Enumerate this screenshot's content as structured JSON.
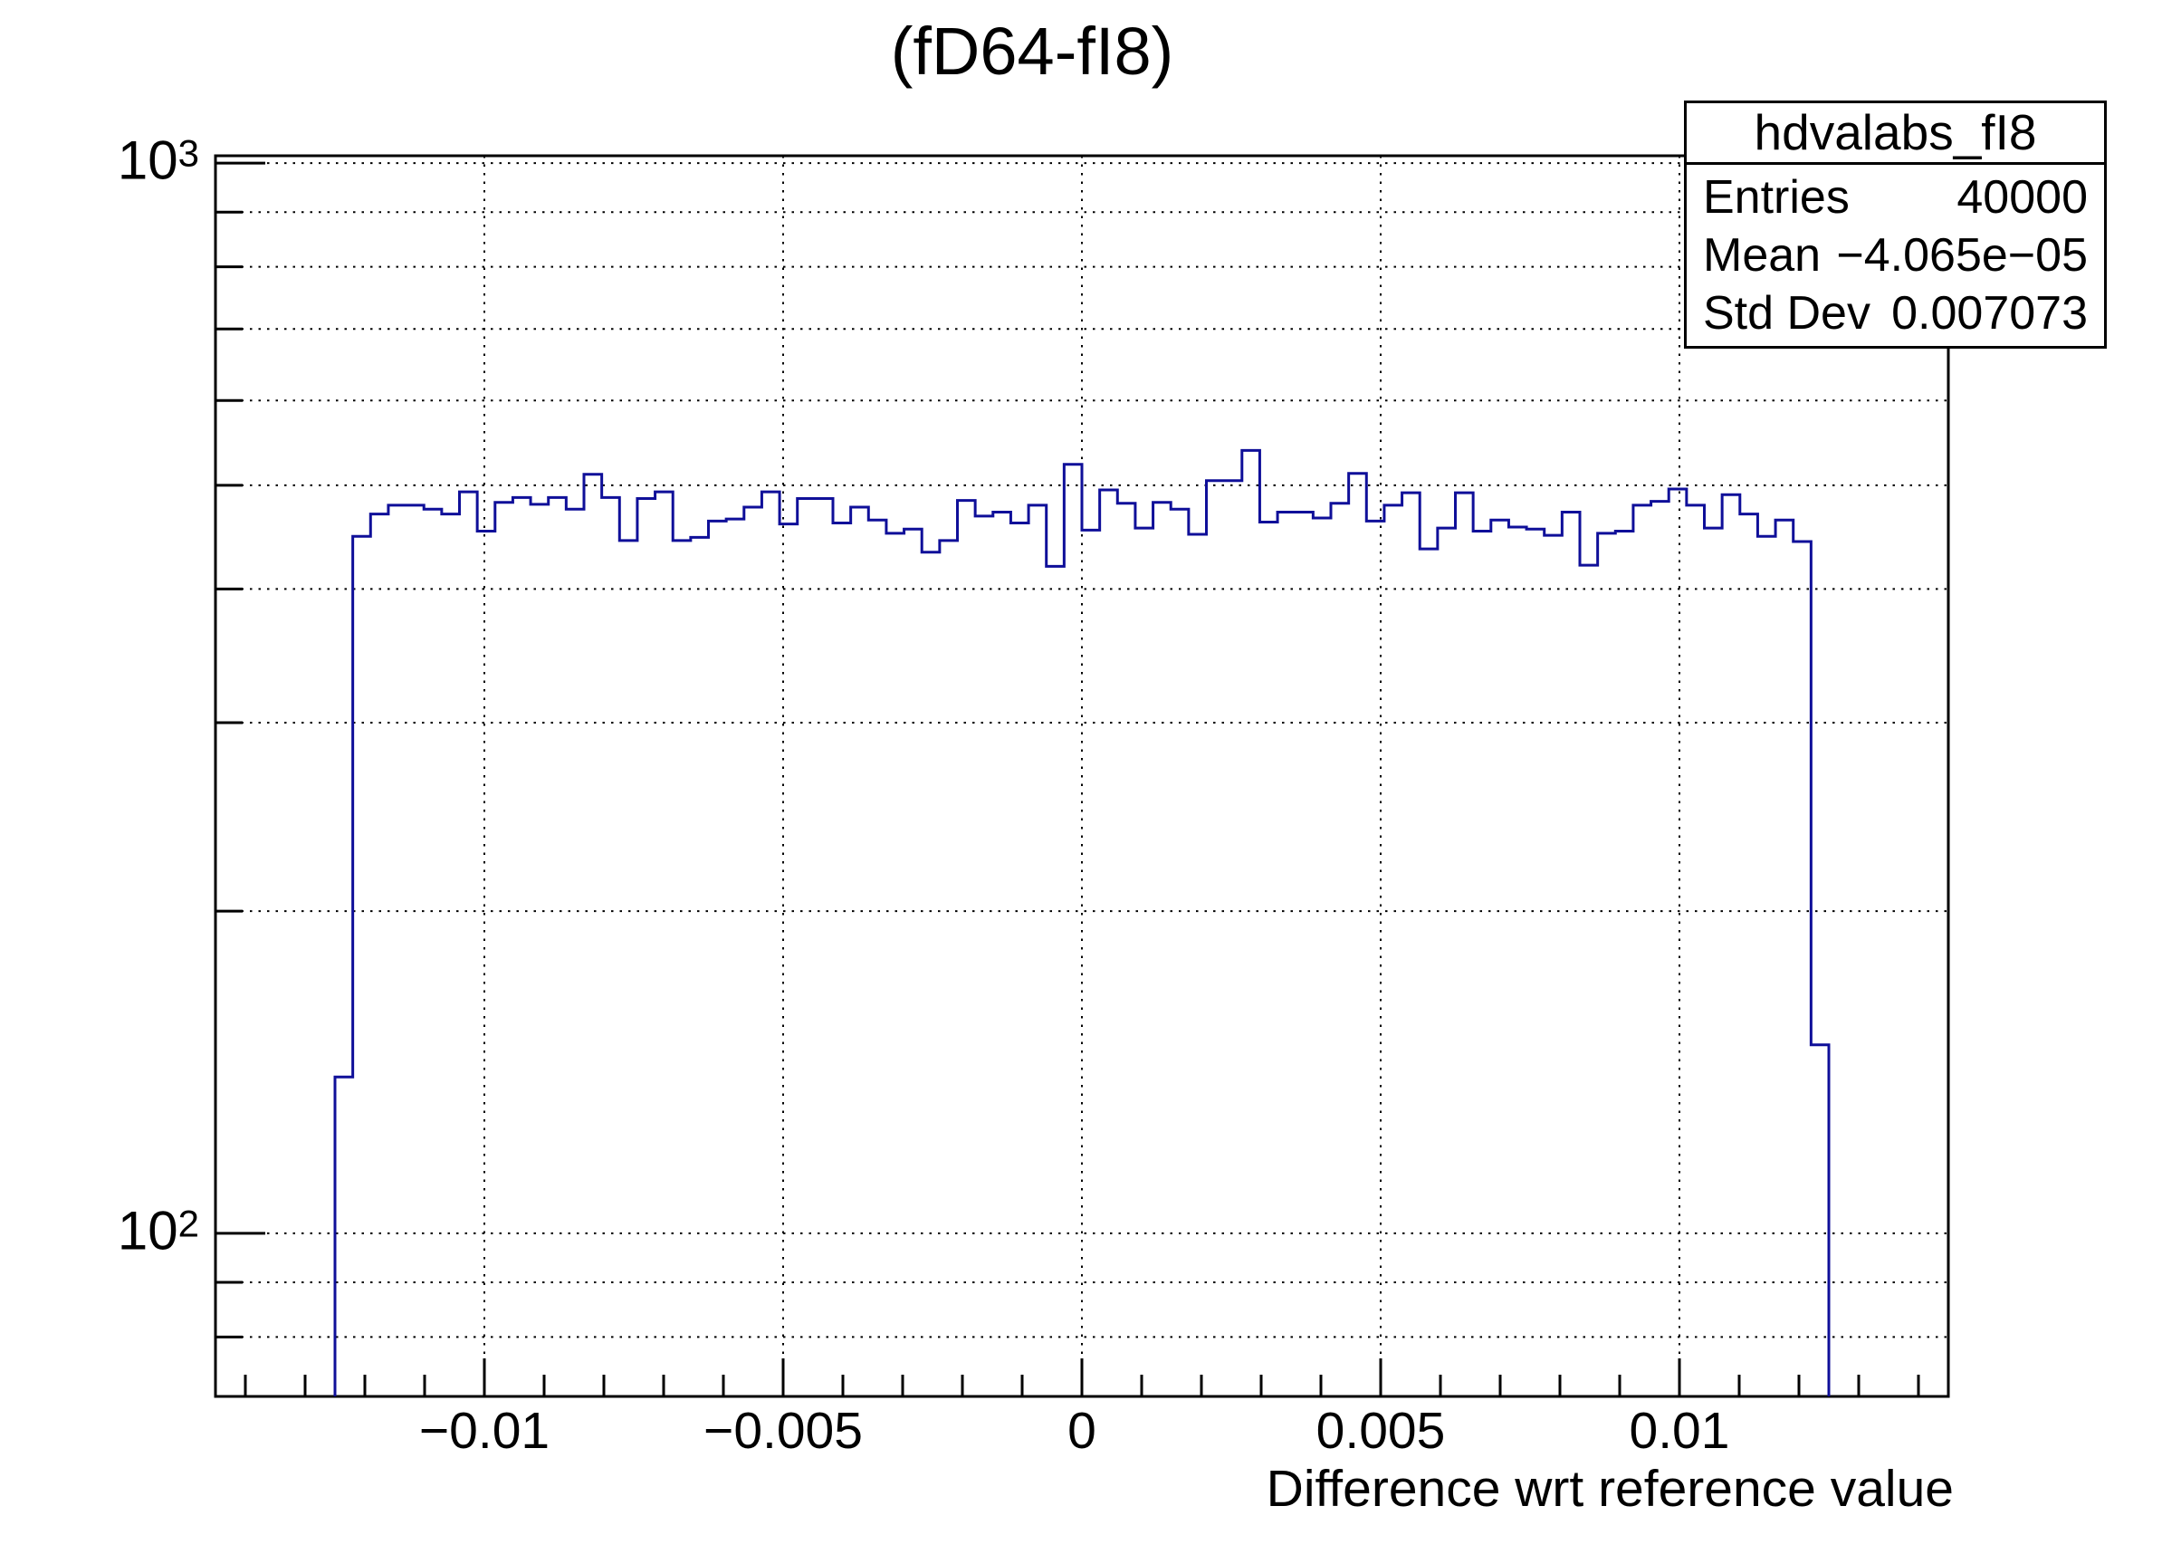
{
  "title": "(fD64-fI8)",
  "stats_box": {
    "title": "hdvalabs_fI8",
    "rows": [
      {
        "label": "Entries",
        "value": "40000"
      },
      {
        "label": "Mean",
        "value": "−4.065e−05"
      },
      {
        "label": "Std Dev",
        "value": "0.007073"
      }
    ]
  },
  "colors": {
    "histogram_line": "#0f0f99",
    "axis": "#000000",
    "grid_dots": "#000000",
    "background": "#ffffff"
  },
  "chart_data": {
    "type": "bar",
    "subtype": "histogram-step-outline",
    "title": "(fD64-fI8)",
    "xlabel": "Difference wrt reference value",
    "ylabel": "",
    "grid": true,
    "legend_position": "none",
    "x_axis": {
      "min": -0.0145,
      "max": 0.0145,
      "major_ticks": [
        -0.01,
        -0.005,
        0,
        0.005,
        0.01
      ],
      "major_tick_labels": [
        "−0.01",
        "−0.005",
        "0",
        "0.005",
        "0.01"
      ],
      "minor_tick_step": 0.001
    },
    "y_axis": {
      "scale": "log",
      "min": 70.4,
      "max": 1016,
      "major_ticks": [
        100,
        1000
      ],
      "major_tick_labels": [
        {
          "mantissa": "10",
          "exponent": "2"
        },
        {
          "mantissa": "10",
          "exponent": "3"
        }
      ],
      "minor_ticks": [
        80,
        90,
        200,
        300,
        400,
        500,
        600,
        700,
        800,
        900
      ]
    },
    "histogram": {
      "name": "hdvalabs_fI8",
      "xmin": -0.0125,
      "xmax": 0.0125,
      "counts": [
        140,
        448,
        470,
        479,
        479,
        475,
        470,
        493,
        453,
        482,
        487,
        480,
        487,
        475,
        512,
        487,
        444,
        486,
        493,
        444,
        447,
        463,
        465,
        477,
        493,
        460,
        486,
        486,
        461,
        477,
        464,
        451,
        455,
        433,
        444,
        484,
        468,
        472,
        461,
        479,
        420,
        523,
        454,
        495,
        481,
        456,
        482,
        475,
        450,
        505,
        505,
        539,
        462,
        472,
        472,
        466,
        481,
        513,
        463,
        479,
        492,
        436,
        456,
        492,
        453,
        464,
        457,
        455,
        449,
        472,
        421,
        451,
        453,
        479,
        483,
        496,
        479,
        456,
        490,
        470,
        448,
        464,
        443,
        150
      ]
    }
  }
}
